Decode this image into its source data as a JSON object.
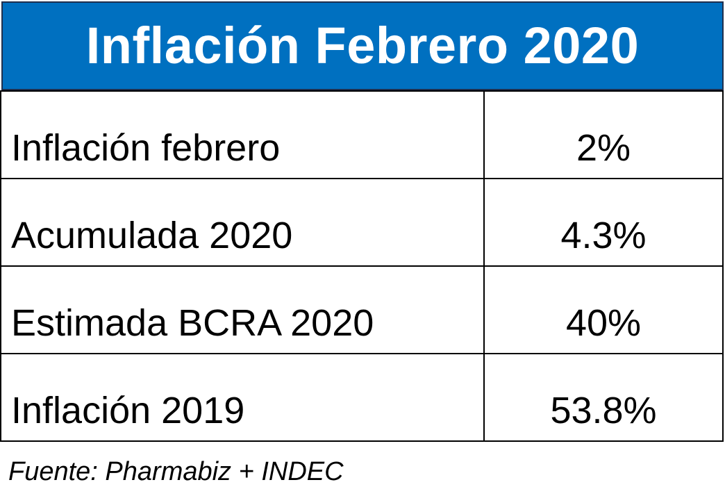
{
  "title": "Inflación Febrero 2020",
  "rows": [
    {
      "label": "Inflación febrero",
      "value": "2%"
    },
    {
      "label": "Acumulada 2020",
      "value": "4.3%"
    },
    {
      "label": "Estimada BCRA 2020",
      "value": "40%"
    },
    {
      "label": "Inflación 2019",
      "value": "53.8%"
    }
  ],
  "source": "Fuente: Pharmabiz + INDEC",
  "colors": {
    "header_background": "#0070c0",
    "header_text": "#ffffff",
    "grid_lines": "#000000"
  }
}
